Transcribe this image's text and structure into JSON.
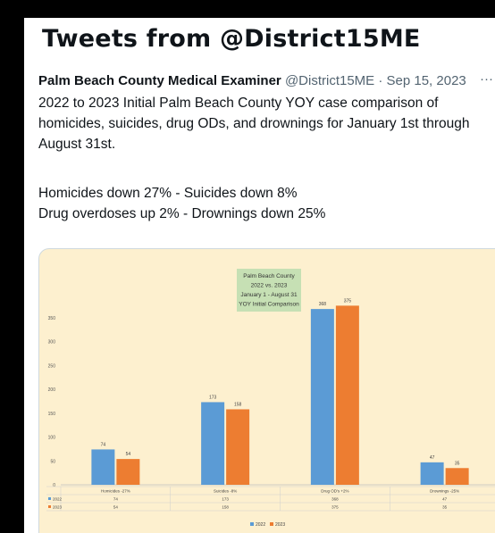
{
  "header": {
    "title": "Tweets from @District15ME"
  },
  "tweet": {
    "author_name": "Palm Beach County Medical Examiner",
    "handle_date": "@District15ME · Sep 15, 2023",
    "more_icon": "more-horizontal-icon",
    "lines": [
      "2022 to 2023 Initial Palm Beach County YOY case comparison of",
      "homicides, suicides, drug ODs, and drownings for January 1st through",
      "August 31st.",
      "Homicides down 27% - Suicides down 8%",
      "Drug overdoses up 2% - Drownings down 25%"
    ]
  },
  "chart_data": {
    "type": "bar",
    "title_lines": [
      "Palm Beach County",
      "2022 vs. 2023",
      "January 1 - August 31",
      "YOY Initial Comparison"
    ],
    "categories": [
      "Homicides -27%",
      "Suicides -8%",
      "Drug OD's +2%",
      "Drownings -25%"
    ],
    "series": [
      {
        "name": "2022",
        "values": [
          74,
          173,
          368,
          47
        ],
        "color": "#5b9bd5"
      },
      {
        "name": "2023",
        "values": [
          54,
          158,
          375,
          35
        ],
        "color": "#ed7d31"
      }
    ],
    "ylim": [
      0,
      400
    ],
    "yticks": [
      0,
      50,
      100,
      150,
      200,
      250,
      300,
      350
    ],
    "grid": false,
    "legend": "bottom",
    "background": "#fdf0cf",
    "title_box_color": "#c6e0b4"
  }
}
